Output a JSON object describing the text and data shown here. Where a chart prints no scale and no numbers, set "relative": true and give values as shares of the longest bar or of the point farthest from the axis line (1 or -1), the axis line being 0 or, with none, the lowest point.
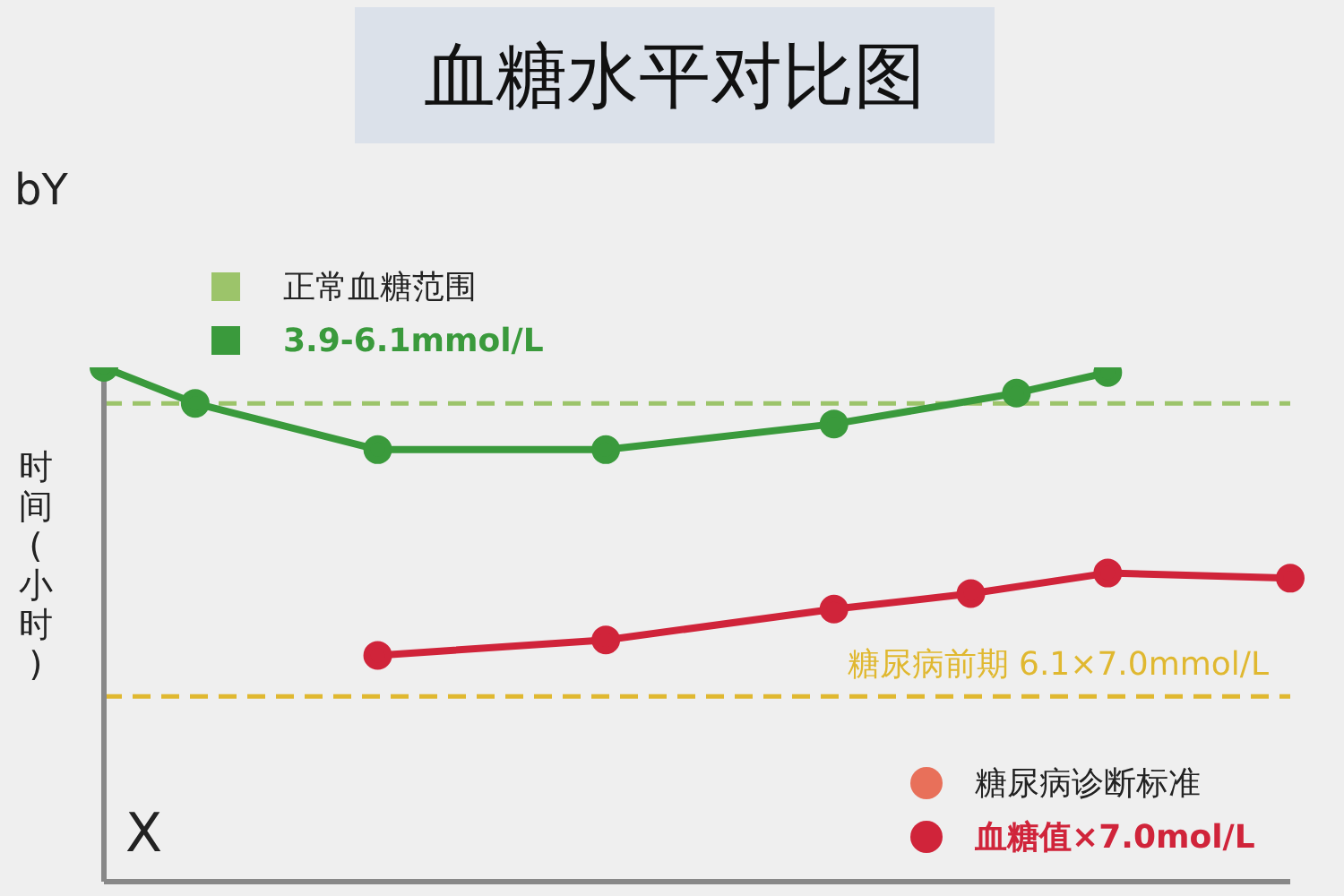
{
  "chart_data": {
    "type": "line",
    "title": "血糖水平对比图",
    "ylabel": "时间(小时)",
    "xlabel": "X",
    "relative": true,
    "categories": [
      null,
      null,
      null,
      null,
      null,
      null,
      null,
      null,
      null,
      null,
      null,
      null,
      null,
      null,
      null,
      null,
      null,
      null,
      null,
      null,
      null,
      null,
      null,
      null,
      null,
      null,
      null
    ],
    "series": [
      {
        "name": "3.9-6.1mmol/L",
        "color": "#3a9a3c",
        "values": [
          1.0,
          null,
          0.93,
          null,
          null,
          null,
          0.84,
          null,
          null,
          null,
          null,
          0.84,
          null,
          null,
          null,
          null,
          0.89,
          null,
          null,
          null,
          0.95,
          null,
          0.99,
          null,
          null,
          null,
          null
        ]
      },
      {
        "name": "血糖值×7.0mol/L",
        "color": "#d0243a",
        "values": [
          null,
          null,
          null,
          null,
          null,
          null,
          0.44,
          null,
          null,
          null,
          null,
          0.47,
          null,
          null,
          null,
          null,
          0.53,
          null,
          null,
          0.56,
          null,
          null,
          0.6,
          null,
          null,
          null,
          0.59
        ]
      }
    ],
    "ref_lines": [
      {
        "axis": "y",
        "value": 0.93,
        "color": "#9cc46a",
        "line_style": "dashed"
      },
      {
        "axis": "y",
        "value": 0.36,
        "label": "糖尿病前期  6.1×7.0mmol/L",
        "color": "#e0b830",
        "line_style": "dashed"
      }
    ],
    "legend_title": "正常血糖范围",
    "annotations": [
      "bY",
      "糖尿病诊断标准"
    ],
    "legend": "top left",
    "marker": "circle",
    "line_style": "solid",
    "grid": false
  }
}
